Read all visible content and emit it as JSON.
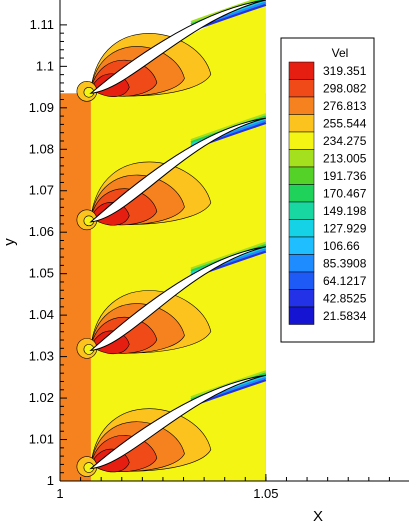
{
  "chart_data": {
    "type": "heatmap",
    "subtype": "cascade-contour",
    "xlabel": "X",
    "ylabel": "y",
    "xlim": [
      1.0,
      1.085
    ],
    "ylim": [
      1.0,
      1.116
    ],
    "x_ticks": [
      "1",
      "1.05"
    ],
    "y_ticks": [
      "1",
      "1.01",
      "1.02",
      "1.03",
      "1.04",
      "1.05",
      "1.06",
      "1.07",
      "1.08",
      "1.09",
      "1.1",
      "1.11"
    ],
    "legend": {
      "title": "Vel",
      "position": "right",
      "levels": [
        {
          "value": "319.351",
          "color": "#e61e12"
        },
        {
          "value": "298.082",
          "color": "#f04a18"
        },
        {
          "value": "276.813",
          "color": "#f5821e"
        },
        {
          "value": "255.544",
          "color": "#fcc21e"
        },
        {
          "value": "234.275",
          "color": "#f5f514"
        },
        {
          "value": "213.005",
          "color": "#a5e01e"
        },
        {
          "value": "191.736",
          "color": "#55d228"
        },
        {
          "value": "170.467",
          "color": "#1ed25a"
        },
        {
          "value": "149.198",
          "color": "#19d7a0"
        },
        {
          "value": "127.929",
          "color": "#16d2e6"
        },
        {
          "value": "106.66",
          "color": "#1ebeff"
        },
        {
          "value": "85.3908",
          "color": "#1e8cff"
        },
        {
          "value": "64.1217",
          "color": "#1e5af5"
        },
        {
          "value": "42.8525",
          "color": "#2332e6"
        },
        {
          "value": "21.5834",
          "color": "#1414d2"
        }
      ]
    },
    "blades": [
      {
        "leading_edge": [
          1.0075,
          1.003
        ],
        "trailing_edge": [
          1.05,
          1.0255
        ]
      },
      {
        "leading_edge": [
          1.0075,
          1.0315
        ],
        "trailing_edge": [
          1.05,
          1.0565
        ]
      },
      {
        "leading_edge": [
          1.0075,
          1.0625
        ],
        "trailing_edge": [
          1.05,
          1.0875
        ]
      },
      {
        "leading_edge": [
          1.0075,
          1.0935
        ],
        "trailing_edge": [
          1.05,
          1.116
        ]
      }
    ]
  }
}
